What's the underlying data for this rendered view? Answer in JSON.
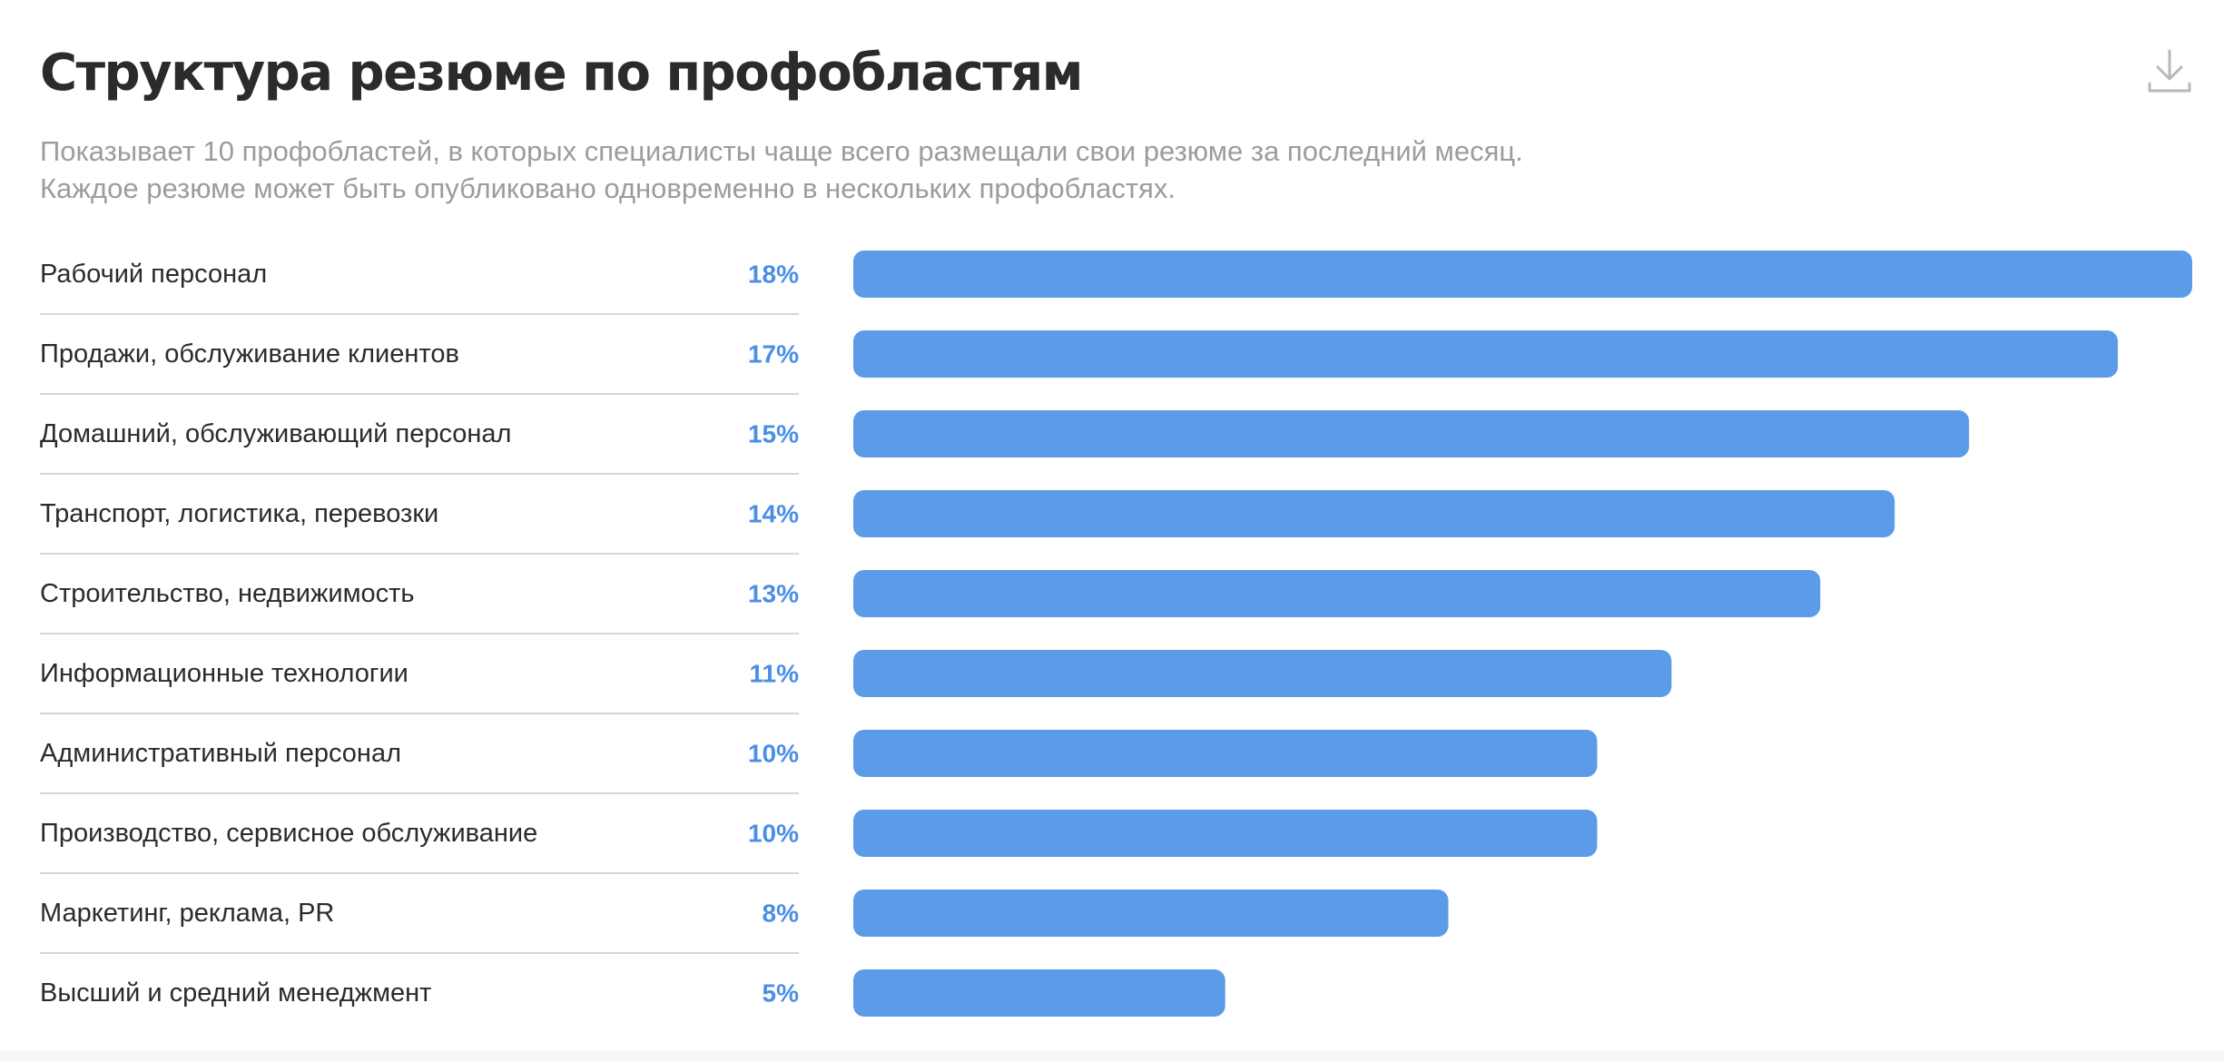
{
  "title": "Структура резюме по профобластям",
  "description": "Показывает 10 профобластей, в которых специалисты чаще всего размещали свои резюме за последний месяц. Каждое резюме может быть опубликовано одновременно в нескольких профобластях.",
  "download_icon": "download-icon",
  "colors": {
    "bar": "#5b9be8",
    "value_text": "#4a8ee6",
    "divider": "#d6d6d6"
  },
  "chart_data": {
    "type": "bar",
    "orientation": "horizontal",
    "categories": [
      "Рабочий персонал",
      "Продажи, обслуживание клиентов",
      "Домашний, обслуживающий персонал",
      "Транспорт, логистика, перевозки",
      "Строительство, недвижимость",
      "Информационные технологии",
      "Административный персонал",
      "Производство, сервисное обслуживание",
      "Маркетинг, реклама, PR",
      "Высший и средний менеджмент"
    ],
    "values": [
      18,
      17,
      15,
      14,
      13,
      11,
      10,
      10,
      8,
      5
    ],
    "value_labels": [
      "18%",
      "17%",
      "15%",
      "14%",
      "13%",
      "11%",
      "10%",
      "10%",
      "8%",
      "5%"
    ],
    "unit": "%",
    "grid": false,
    "legend": "none"
  }
}
